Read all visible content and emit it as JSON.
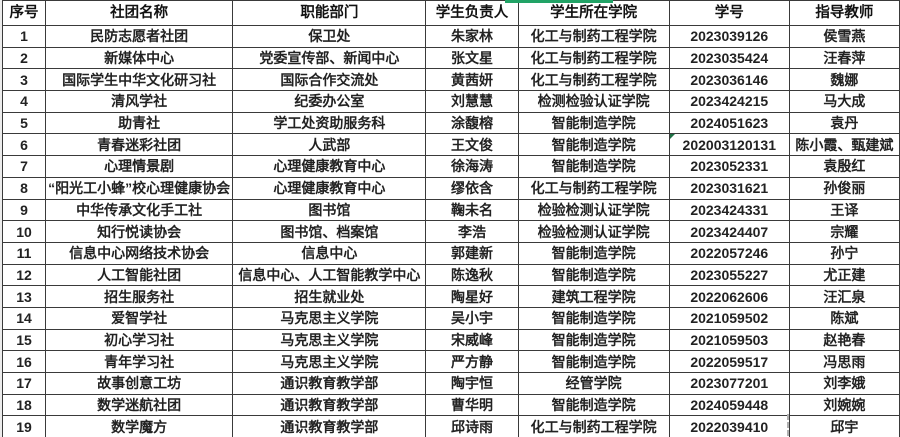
{
  "table": {
    "headers": [
      "序号",
      "社团名称",
      "职能部门",
      "学生负责人",
      "学生所在学院",
      "学号",
      "指导教师"
    ],
    "rows": [
      [
        "1",
        "民防志愿者社团",
        "保卫处",
        "朱家林",
        "化工与制药工程学院",
        "2023039126",
        "侯雪燕"
      ],
      [
        "2",
        "新媒体中心",
        "党委宣传部、新闻中心",
        "张文星",
        "化工与制药工程学院",
        "2023035424",
        "汪春萍"
      ],
      [
        "3",
        "国际学生中华文化研习社",
        "国际合作交流处",
        "黄茜妍",
        "化工与制药工程学院",
        "2023036146",
        "魏娜"
      ],
      [
        "4",
        "清风学社",
        "纪委办公室",
        "刘慧慧",
        "检测检验认证学院",
        "2023424215",
        "马大成"
      ],
      [
        "5",
        "助青社",
        "学工处资助服务科",
        "涂馥榕",
        "智能制造学院",
        "2024051623",
        "袁丹"
      ],
      [
        "6",
        "青春迷彩社团",
        "人武部",
        "王文俊",
        "智能制造学院",
        "202003120131",
        "陈小霞、甄建斌"
      ],
      [
        "7",
        "心理情景剧",
        "心理健康教育中心",
        "徐海涛",
        "智能制造学院",
        "2023052331",
        "袁殷红"
      ],
      [
        "8",
        "“阳光工小蜂”校心理健康协会",
        "心理健康教育中心",
        "缪依含",
        "化工与制药工程学院",
        "2023031621",
        "孙俊丽"
      ],
      [
        "9",
        "中华传承文化手工社",
        "图书馆",
        "鞠未名",
        "检验检测认证学院",
        "2023424331",
        "王译"
      ],
      [
        "10",
        "知行悦读协会",
        "图书馆、档案馆",
        "李浩",
        "检验检测认证学院",
        "2023424407",
        "宗耀"
      ],
      [
        "11",
        "信息中心网络技术协会",
        "信息中心",
        "郭建新",
        "智能制造学院",
        "2022057246",
        "孙宁"
      ],
      [
        "12",
        "人工智能社团",
        "信息中心、人工智能教学中心",
        "陈逸秋",
        "智能制造学院",
        "2023055227",
        "尤正建"
      ],
      [
        "13",
        "招生服务社",
        "招生就业处",
        "陶星好",
        "建筑工程学院",
        "2022062606",
        "汪汇泉"
      ],
      [
        "14",
        "爱智学社",
        "马克思主义学院",
        "吴小宇",
        "智能制造学院",
        "2021059502",
        "陈斌"
      ],
      [
        "15",
        "初心学习社",
        "马克思主义学院",
        "宋威峰",
        "智能制造学院",
        "2021059503",
        "赵艳春"
      ],
      [
        "16",
        "青年学习社",
        "马克思主义学院",
        "严方静",
        "智能制造学院",
        "2022059517",
        "冯思雨"
      ],
      [
        "17",
        "故事创意工坊",
        "通识教育教学部",
        "陶宇恒",
        "经管学院",
        "2023077201",
        "刘李娥"
      ],
      [
        "18",
        "数学迷航社团",
        "通识教育教学部",
        "曹华明",
        "智能制造学院",
        "2024059448",
        "刘婉婉"
      ],
      [
        "19",
        "数学魔方",
        "通识教育教学部",
        "邱诗雨",
        "化工与制药工程学院",
        "2022039410",
        "邱宇"
      ]
    ]
  },
  "markers": {
    "number_stored_as_text_cell": {
      "row_index": 5,
      "col_index": 5,
      "triangle_color": "#1e7145"
    },
    "faded_cell": {
      "row_index": 18,
      "col_index": 6,
      "text_color": "#8f8f8f"
    },
    "selection_top_line_color": "#21a366"
  },
  "colors": {
    "grid_line": "#3a3a3a",
    "text": "#222222",
    "background": "#ffffff"
  }
}
